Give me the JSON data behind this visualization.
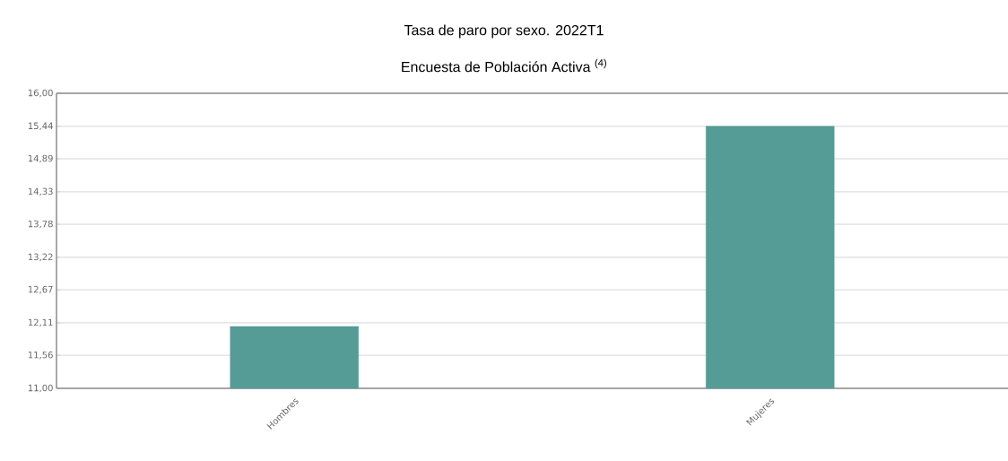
{
  "chart_data": {
    "type": "bar",
    "title": "Tasa de paro por sexo. 2022T1",
    "subtitle": "Encuesta de Población Activa $^{(4)}$",
    "categories": [
      "Hombres",
      "Mujeres"
    ],
    "values": [
      12.05,
      15.44
    ],
    "color": "#559b96",
    "ylim": [
      11,
      16
    ],
    "yticks": [
      {
        "value": 11,
        "label": "11,00"
      },
      {
        "value": 11.56,
        "label": "11,56"
      },
      {
        "value": 12.11,
        "label": "12,11"
      },
      {
        "value": 12.67,
        "label": "12,67"
      },
      {
        "value": 13.22,
        "label": "13,22"
      },
      {
        "value": 13.78,
        "label": "13,78"
      },
      {
        "value": 14.33,
        "label": "14,33"
      },
      {
        "value": 14.89,
        "label": "14,89"
      },
      {
        "value": 15.44,
        "label": "15,44"
      },
      {
        "value": 16,
        "label": "16,00"
      }
    ],
    "grid": "y"
  }
}
